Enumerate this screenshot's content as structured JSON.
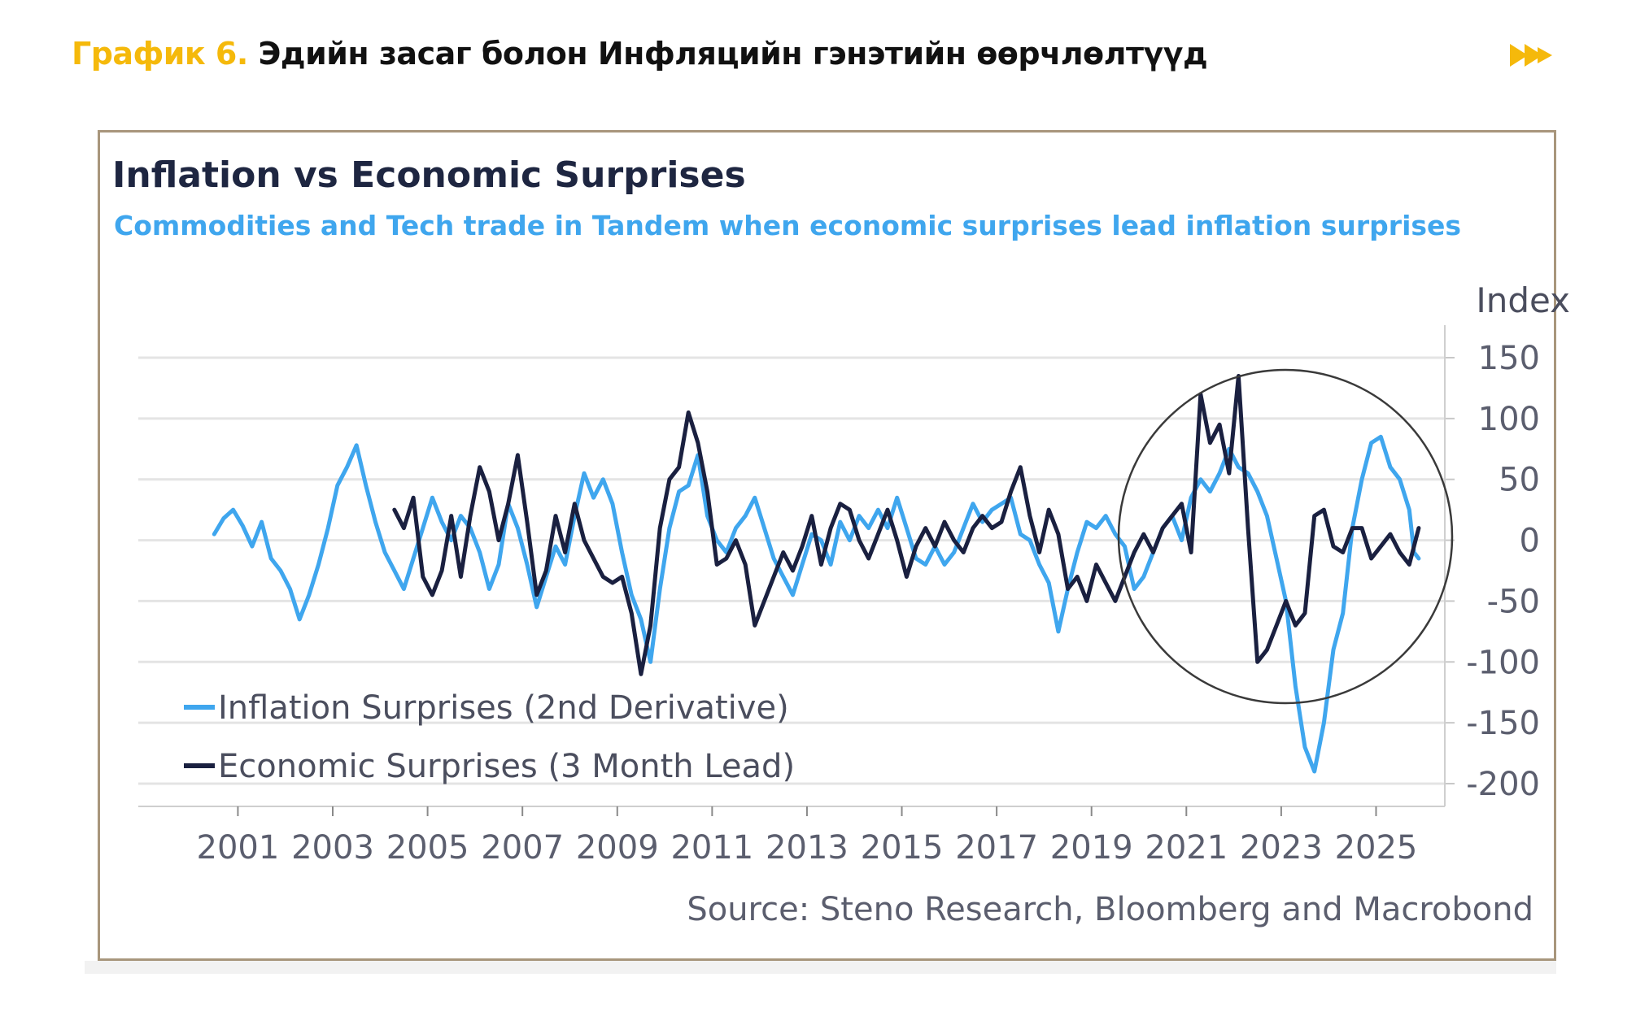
{
  "heading": {
    "prefix": "График 6.",
    "main": "Эдийн засаг болон Инфляцийн гэнэтийн өөрчлөлтүүд",
    "icon": "double-chevron-right-icon",
    "accent_color": "#f5b90b"
  },
  "source": "Source: Steno Research, Bloomberg and Macrobond",
  "chart_data": {
    "type": "line",
    "title": "Inflation vs Economic Surprises",
    "subtitle": "Commodities and Tech trade in Tandem when economic surprises lead inflation surprises",
    "ylabel": "Index",
    "ylim": [
      -200,
      150
    ],
    "yticks": [
      150,
      100,
      50,
      0,
      -50,
      -100,
      -150,
      -200
    ],
    "xlim": [
      2000.4,
      2025.9
    ],
    "xticks": [
      2001,
      2003,
      2005,
      2007,
      2009,
      2011,
      2013,
      2015,
      2017,
      2019,
      2021,
      2023,
      2025
    ],
    "grid": true,
    "legend_position": "bottom-left",
    "annotation": "circle around 2020–2025",
    "series": [
      {
        "name": "Inflation Surprises (2nd Derivative)",
        "color": "#3fa6ee",
        "points": [
          [
            2000.5,
            5
          ],
          [
            2000.7,
            18
          ],
          [
            2000.9,
            25
          ],
          [
            2001.1,
            12
          ],
          [
            2001.3,
            -5
          ],
          [
            2001.5,
            15
          ],
          [
            2001.7,
            -15
          ],
          [
            2001.9,
            -25
          ],
          [
            2002.1,
            -40
          ],
          [
            2002.3,
            -65
          ],
          [
            2002.5,
            -45
          ],
          [
            2002.7,
            -20
          ],
          [
            2002.9,
            10
          ],
          [
            2003.1,
            45
          ],
          [
            2003.3,
            60
          ],
          [
            2003.5,
            78
          ],
          [
            2003.7,
            45
          ],
          [
            2003.9,
            15
          ],
          [
            2004.1,
            -10
          ],
          [
            2004.3,
            -25
          ],
          [
            2004.5,
            -40
          ],
          [
            2004.7,
            -15
          ],
          [
            2004.9,
            10
          ],
          [
            2005.1,
            35
          ],
          [
            2005.3,
            15
          ],
          [
            2005.5,
            0
          ],
          [
            2005.7,
            20
          ],
          [
            2005.9,
            10
          ],
          [
            2006.1,
            -10
          ],
          [
            2006.3,
            -40
          ],
          [
            2006.5,
            -20
          ],
          [
            2006.7,
            30
          ],
          [
            2006.9,
            10
          ],
          [
            2007.1,
            -20
          ],
          [
            2007.3,
            -55
          ],
          [
            2007.5,
            -30
          ],
          [
            2007.7,
            -5
          ],
          [
            2007.9,
            -20
          ],
          [
            2008.1,
            20
          ],
          [
            2008.3,
            55
          ],
          [
            2008.5,
            35
          ],
          [
            2008.7,
            50
          ],
          [
            2008.9,
            30
          ],
          [
            2009.1,
            -10
          ],
          [
            2009.3,
            -45
          ],
          [
            2009.5,
            -65
          ],
          [
            2009.7,
            -100
          ],
          [
            2009.9,
            -40
          ],
          [
            2010.1,
            10
          ],
          [
            2010.3,
            40
          ],
          [
            2010.5,
            45
          ],
          [
            2010.7,
            70
          ],
          [
            2010.9,
            20
          ],
          [
            2011.1,
            0
          ],
          [
            2011.3,
            -10
          ],
          [
            2011.5,
            10
          ],
          [
            2011.7,
            20
          ],
          [
            2011.9,
            35
          ],
          [
            2012.1,
            10
          ],
          [
            2012.3,
            -15
          ],
          [
            2012.5,
            -30
          ],
          [
            2012.7,
            -45
          ],
          [
            2012.9,
            -20
          ],
          [
            2013.1,
            5
          ],
          [
            2013.3,
            0
          ],
          [
            2013.5,
            -20
          ],
          [
            2013.7,
            15
          ],
          [
            2013.9,
            0
          ],
          [
            2014.1,
            20
          ],
          [
            2014.3,
            10
          ],
          [
            2014.5,
            25
          ],
          [
            2014.7,
            10
          ],
          [
            2014.9,
            35
          ],
          [
            2015.1,
            10
          ],
          [
            2015.3,
            -15
          ],
          [
            2015.5,
            -20
          ],
          [
            2015.7,
            -5
          ],
          [
            2015.9,
            -20
          ],
          [
            2016.1,
            -10
          ],
          [
            2016.3,
            10
          ],
          [
            2016.5,
            30
          ],
          [
            2016.7,
            15
          ],
          [
            2016.9,
            25
          ],
          [
            2017.1,
            30
          ],
          [
            2017.3,
            35
          ],
          [
            2017.5,
            5
          ],
          [
            2017.7,
            0
          ],
          [
            2017.9,
            -20
          ],
          [
            2018.1,
            -35
          ],
          [
            2018.3,
            -75
          ],
          [
            2018.5,
            -40
          ],
          [
            2018.7,
            -10
          ],
          [
            2018.9,
            15
          ],
          [
            2019.1,
            10
          ],
          [
            2019.3,
            20
          ],
          [
            2019.5,
            5
          ],
          [
            2019.7,
            -5
          ],
          [
            2019.9,
            -40
          ],
          [
            2020.1,
            -30
          ],
          [
            2020.3,
            -10
          ],
          [
            2020.5,
            10
          ],
          [
            2020.7,
            20
          ],
          [
            2020.9,
            0
          ],
          [
            2021.1,
            35
          ],
          [
            2021.3,
            50
          ],
          [
            2021.5,
            40
          ],
          [
            2021.7,
            55
          ],
          [
            2021.9,
            75
          ],
          [
            2022.1,
            60
          ],
          [
            2022.3,
            55
          ],
          [
            2022.5,
            40
          ],
          [
            2022.7,
            20
          ],
          [
            2022.9,
            -15
          ],
          [
            2023.1,
            -50
          ],
          [
            2023.3,
            -120
          ],
          [
            2023.5,
            -170
          ],
          [
            2023.7,
            -190
          ],
          [
            2023.9,
            -150
          ],
          [
            2024.1,
            -90
          ],
          [
            2024.3,
            -60
          ],
          [
            2024.5,
            10
          ],
          [
            2024.7,
            50
          ],
          [
            2024.9,
            80
          ],
          [
            2025.1,
            85
          ],
          [
            2025.3,
            60
          ],
          [
            2025.5,
            50
          ],
          [
            2025.7,
            25
          ],
          [
            2025.8,
            -10
          ],
          [
            2025.9,
            -15
          ]
        ]
      },
      {
        "name": "Economic Surprises (3 Month Lead)",
        "color": "#1a2040",
        "points": [
          [
            2004.3,
            25
          ],
          [
            2004.5,
            10
          ],
          [
            2004.7,
            35
          ],
          [
            2004.9,
            -30
          ],
          [
            2005.1,
            -45
          ],
          [
            2005.3,
            -25
          ],
          [
            2005.5,
            20
          ],
          [
            2005.7,
            -30
          ],
          [
            2005.9,
            20
          ],
          [
            2006.1,
            60
          ],
          [
            2006.3,
            40
          ],
          [
            2006.5,
            0
          ],
          [
            2006.7,
            30
          ],
          [
            2006.9,
            70
          ],
          [
            2007.1,
            15
          ],
          [
            2007.3,
            -45
          ],
          [
            2007.5,
            -25
          ],
          [
            2007.7,
            20
          ],
          [
            2007.9,
            -10
          ],
          [
            2008.1,
            30
          ],
          [
            2008.3,
            0
          ],
          [
            2008.5,
            -15
          ],
          [
            2008.7,
            -30
          ],
          [
            2008.9,
            -35
          ],
          [
            2009.1,
            -30
          ],
          [
            2009.3,
            -60
          ],
          [
            2009.5,
            -110
          ],
          [
            2009.7,
            -70
          ],
          [
            2009.9,
            10
          ],
          [
            2010.1,
            50
          ],
          [
            2010.3,
            60
          ],
          [
            2010.5,
            105
          ],
          [
            2010.7,
            80
          ],
          [
            2010.9,
            40
          ],
          [
            2011.1,
            -20
          ],
          [
            2011.3,
            -15
          ],
          [
            2011.5,
            0
          ],
          [
            2011.7,
            -20
          ],
          [
            2011.9,
            -70
          ],
          [
            2012.1,
            -50
          ],
          [
            2012.3,
            -30
          ],
          [
            2012.5,
            -10
          ],
          [
            2012.7,
            -25
          ],
          [
            2012.9,
            -5
          ],
          [
            2013.1,
            20
          ],
          [
            2013.3,
            -20
          ],
          [
            2013.5,
            10
          ],
          [
            2013.7,
            30
          ],
          [
            2013.9,
            25
          ],
          [
            2014.1,
            0
          ],
          [
            2014.3,
            -15
          ],
          [
            2014.5,
            5
          ],
          [
            2014.7,
            25
          ],
          [
            2014.9,
            0
          ],
          [
            2015.1,
            -30
          ],
          [
            2015.3,
            -5
          ],
          [
            2015.5,
            10
          ],
          [
            2015.7,
            -5
          ],
          [
            2015.9,
            15
          ],
          [
            2016.1,
            0
          ],
          [
            2016.3,
            -10
          ],
          [
            2016.5,
            10
          ],
          [
            2016.7,
            20
          ],
          [
            2016.9,
            10
          ],
          [
            2017.1,
            15
          ],
          [
            2017.3,
            40
          ],
          [
            2017.5,
            60
          ],
          [
            2017.7,
            20
          ],
          [
            2017.9,
            -10
          ],
          [
            2018.1,
            25
          ],
          [
            2018.3,
            5
          ],
          [
            2018.5,
            -40
          ],
          [
            2018.7,
            -30
          ],
          [
            2018.9,
            -50
          ],
          [
            2019.1,
            -20
          ],
          [
            2019.3,
            -35
          ],
          [
            2019.5,
            -50
          ],
          [
            2019.7,
            -30
          ],
          [
            2019.9,
            -10
          ],
          [
            2020.1,
            5
          ],
          [
            2020.3,
            -10
          ],
          [
            2020.5,
            10
          ],
          [
            2020.7,
            20
          ],
          [
            2020.9,
            30
          ],
          [
            2021.1,
            -10
          ],
          [
            2021.3,
            120
          ],
          [
            2021.5,
            80
          ],
          [
            2021.7,
            95
          ],
          [
            2021.9,
            55
          ],
          [
            2022.1,
            135
          ],
          [
            2022.3,
            10
          ],
          [
            2022.5,
            -100
          ],
          [
            2022.7,
            -90
          ],
          [
            2022.9,
            -70
          ],
          [
            2023.1,
            -50
          ],
          [
            2023.3,
            -70
          ],
          [
            2023.5,
            -60
          ],
          [
            2023.7,
            20
          ],
          [
            2023.9,
            25
          ],
          [
            2024.1,
            -5
          ],
          [
            2024.3,
            -10
          ],
          [
            2024.5,
            10
          ],
          [
            2024.7,
            10
          ],
          [
            2024.9,
            -15
          ],
          [
            2025.1,
            -5
          ],
          [
            2025.3,
            5
          ],
          [
            2025.5,
            -10
          ],
          [
            2025.7,
            -20
          ],
          [
            2025.9,
            10
          ]
        ]
      }
    ]
  }
}
